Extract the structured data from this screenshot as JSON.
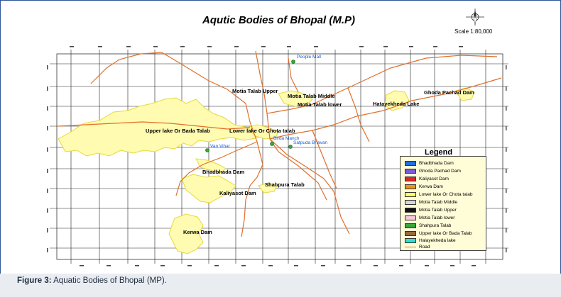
{
  "map": {
    "title": "Aqutic Bodies of Bhopal (M.P)",
    "scale": "Scale 1:80,000",
    "compass_icon": "north-arrow-compass"
  },
  "labels": {
    "motia_upper": "Motia Talab Upper",
    "motia_middle": "Motia Talab Middle",
    "motia_lower": "Motia Talab lower",
    "hatayekheda": "Hatayekheda Lake",
    "ghoda_pachad": "Ghoda Pachad Dam",
    "upper_lake": "Upper lake Or Bada Talab",
    "lower_lake": "Lower lake Or Chota talab",
    "bhadbhada": "Bhadbhada Dam",
    "shahpura": "Shahpura Talab",
    "kaliyasot": "Kaliyasot Dam",
    "kerwa": "Kerwa Dam"
  },
  "places": {
    "people_mall": "People Mall",
    "birda_manch": "Birda Manch",
    "satpuda_bhavan": "Satpuda Bhavan",
    "van_vihar": "Van Vihar"
  },
  "legend": {
    "title": "Legend",
    "items": [
      {
        "label": "Bhadbhada Dam",
        "color": "#1f6fe0"
      },
      {
        "label": "Ghoda Pachad Dam",
        "color": "#7b5cd6"
      },
      {
        "label": "Kaliyasot Dam",
        "color": "#e0242c"
      },
      {
        "label": "Kerwa Dam",
        "color": "#e8951a"
      },
      {
        "label": "Lower lake Or Chota talab",
        "color": "#ffff66"
      },
      {
        "label": "Motia Talab Middle",
        "color": "#d8d8d8"
      },
      {
        "label": "Motia Talab Upper",
        "color": "#111111"
      },
      {
        "label": "Motia Talab lower",
        "color": "#f7c8dc"
      },
      {
        "label": "Shahpura Talab",
        "color": "#3aa63a"
      },
      {
        "label": "Upper lake Or Bada Talab",
        "color": "#9a6a3c"
      },
      {
        "label": "Halayekheda lake",
        "color": "#2ee0d0"
      }
    ],
    "road_label": "Road",
    "road_color": "#e0702a"
  },
  "caption": {
    "figure": "Figure 3:",
    "text": " Aquatic Bodies of Bhopal (MP)."
  }
}
